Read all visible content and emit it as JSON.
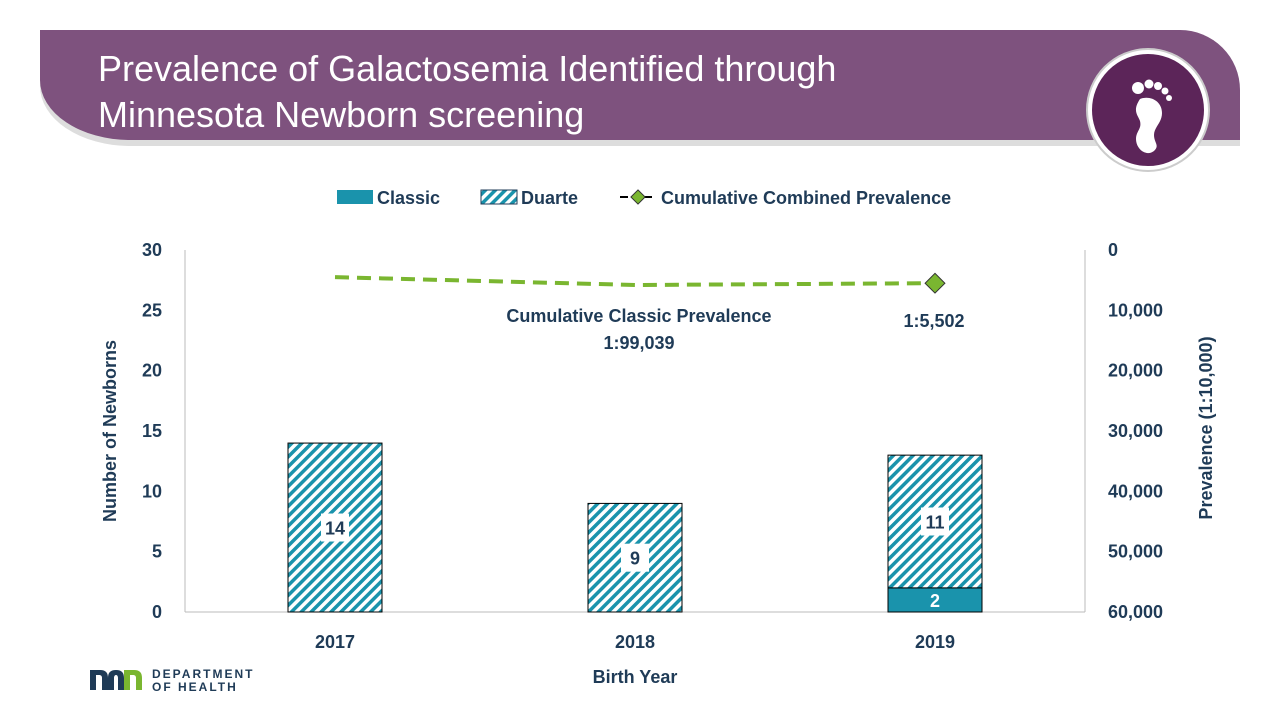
{
  "title": "Prevalence of Galactosemia Identified through Minnesota Newborn screening",
  "logo": {
    "line1": "DEPARTMENT",
    "line2": "OF HEALTH"
  },
  "colors": {
    "classic": "#1a93ac",
    "duarte": "#1a93ac",
    "line": "#7ab630",
    "text": "#1f3b57",
    "header": "#7e527e"
  },
  "chart_data": {
    "type": "bar",
    "categories": [
      "2017",
      "2018",
      "2019"
    ],
    "series": [
      {
        "name": "Classic",
        "type": "bar-stacked",
        "values": [
          0,
          0,
          2
        ]
      },
      {
        "name": "Duarte",
        "type": "bar-stacked-hatched",
        "values": [
          14,
          9,
          11
        ]
      },
      {
        "name": "Cumulative Combined Prevalence",
        "type": "line",
        "axis": "right",
        "values": [
          4500,
          5800,
          5502
        ]
      }
    ],
    "data_labels": {
      "duarte": [
        "14",
        "9",
        "11"
      ],
      "classic": [
        "",
        "",
        "2"
      ],
      "line_last": "1:5,502"
    },
    "annotation": {
      "line1": "Cumulative Classic Prevalence",
      "line2": "1:99,039"
    },
    "xlabel": "Birth Year",
    "ylabel": "Number of  Newborns",
    "y2label": "Prevalence (1:10,000)",
    "ylim": [
      0,
      30
    ],
    "yticks": [
      "0",
      "5",
      "10",
      "15",
      "20",
      "25",
      "30"
    ],
    "y2lim": [
      0,
      60000
    ],
    "y2_inverted": true,
    "y2ticks": [
      "0",
      "10,000",
      "20,000",
      "30,000",
      "40,000",
      "50,000",
      "60,000"
    ],
    "legend_position": "top",
    "grid": false
  }
}
